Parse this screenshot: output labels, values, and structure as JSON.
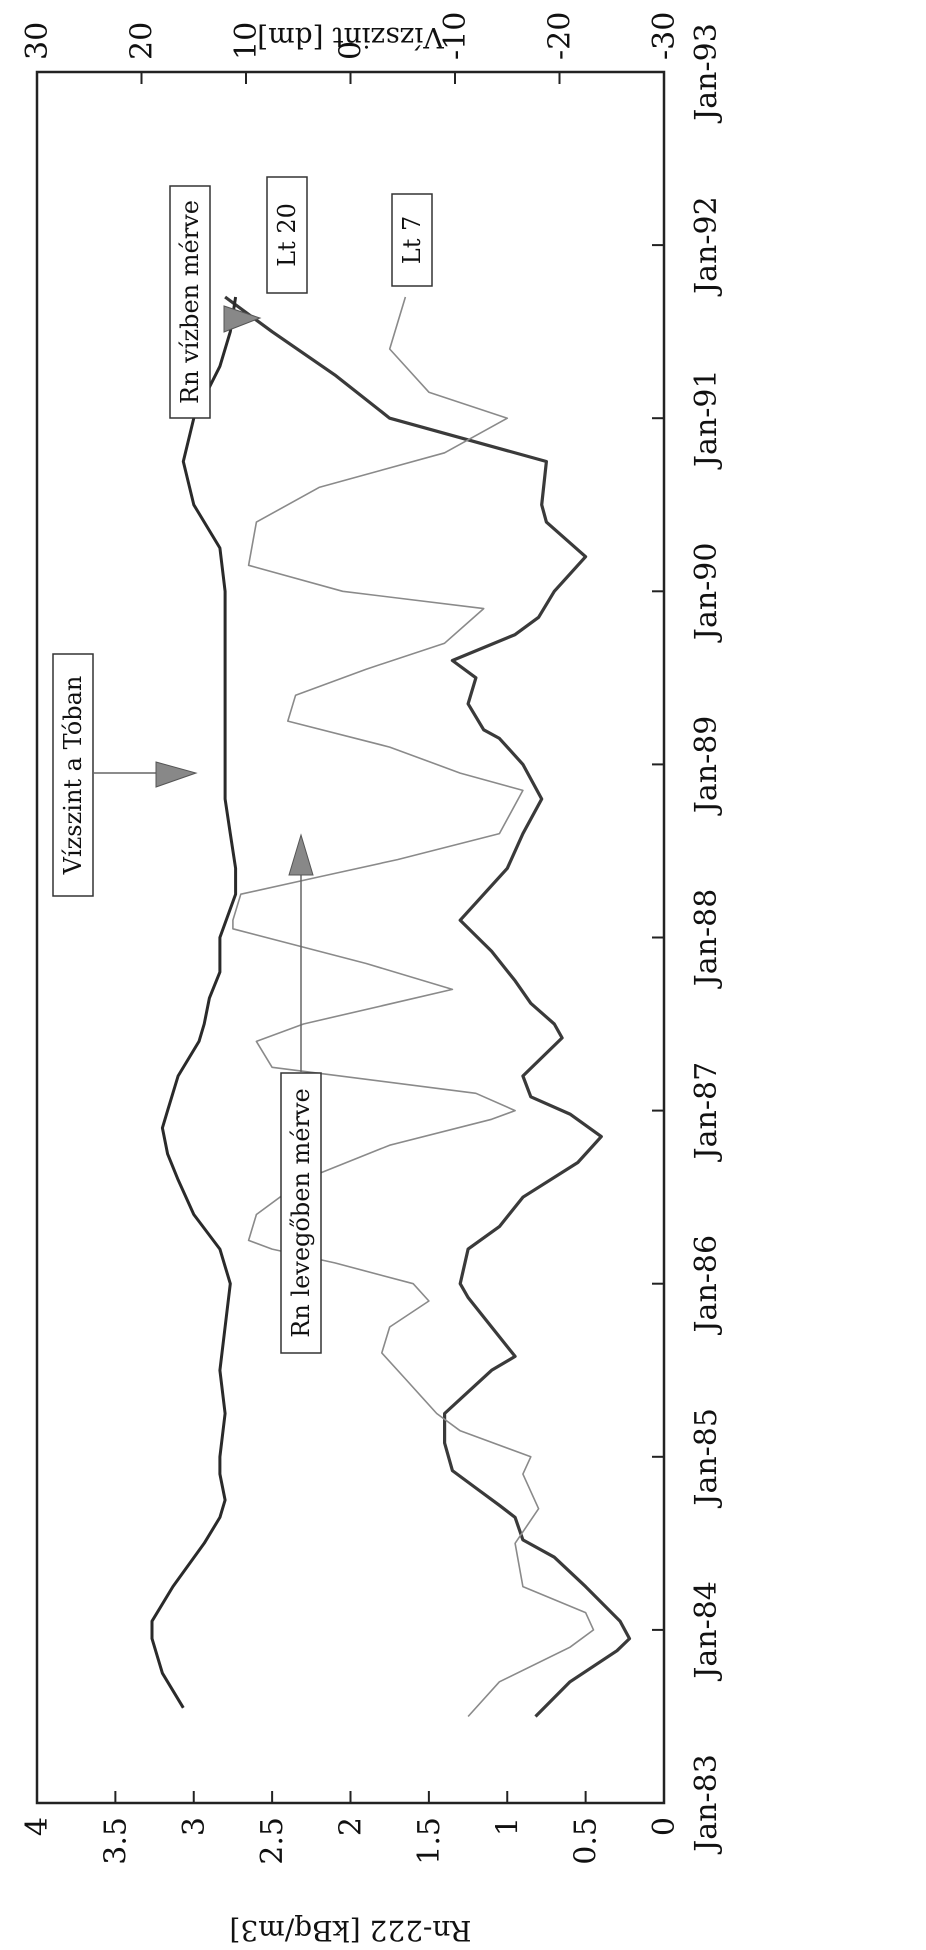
{
  "chart_data": {
    "type": "line",
    "xlabel": "",
    "ylabel": "Rn-222 [kBq/m3]",
    "y2label": "Vízszint [dm]",
    "xlim": [
      "Jan-83",
      "Jan-93"
    ],
    "ylim": [
      0,
      4
    ],
    "y2lim": [
      -30,
      30
    ],
    "x_tick_labels": [
      "Jan-83",
      "Jan-84",
      "Jan-85",
      "Jan-86",
      "Jan-87",
      "Jan-88",
      "Jan-89",
      "Jan-90",
      "Jan-91",
      "Jan-92",
      "Jan-93"
    ],
    "y_tick_labels": [
      "0",
      "0.5",
      "1",
      "1.5",
      "2",
      "2.5",
      "3",
      "3.5",
      "4"
    ],
    "y2_tick_labels": [
      "-30",
      "-20",
      "-10",
      "0",
      "10",
      "20",
      "30"
    ],
    "grid": false,
    "series": [
      {
        "name": "Lt 20",
        "axis": "left",
        "color": "#3a3a3a",
        "x": [
          1983.5,
          1983.7,
          1983.88,
          1983.95,
          1984.05,
          1984.25,
          1984.42,
          1984.52,
          1984.65,
          1984.72,
          1984.82,
          1984.92,
          1985.08,
          1985.25,
          1985.5,
          1985.58,
          1985.75,
          1985.92,
          1986.0,
          1986.2,
          1986.33,
          1986.5,
          1986.7,
          1986.85,
          1986.98,
          1987.08,
          1987.2,
          1987.42,
          1987.5,
          1987.62,
          1987.75,
          1987.92,
          1988.1,
          1988.2,
          1988.4,
          1988.6,
          1988.8,
          1989.0,
          1989.15,
          1989.2,
          1989.35,
          1989.5,
          1989.6,
          1989.75,
          1989.85,
          1990.0,
          1990.2,
          1990.4,
          1990.5,
          1990.75,
          1991.0,
          1991.25,
          1991.5,
          1991.7
        ],
        "values": [
          0.82,
          0.6,
          0.3,
          0.22,
          0.28,
          0.5,
          0.7,
          0.9,
          0.95,
          1.05,
          1.2,
          1.35,
          1.4,
          1.4,
          1.1,
          0.95,
          1.1,
          1.25,
          1.3,
          1.25,
          1.05,
          0.9,
          0.55,
          0.4,
          0.6,
          0.85,
          0.9,
          0.65,
          0.7,
          0.85,
          0.95,
          1.1,
          1.3,
          1.2,
          1.0,
          0.9,
          0.78,
          0.9,
          1.05,
          1.15,
          1.25,
          1.2,
          1.35,
          0.95,
          0.8,
          0.7,
          0.5,
          0.75,
          0.78,
          0.75,
          1.75,
          2.1,
          2.5,
          2.8
        ]
      },
      {
        "name": "Lt 7",
        "axis": "left",
        "color": "#8a8a8a",
        "x": [
          1983.5,
          1983.7,
          1983.9,
          1984.0,
          1984.1,
          1984.25,
          1984.5,
          1984.7,
          1984.9,
          1985.0,
          1985.15,
          1985.25,
          1985.45,
          1985.6,
          1985.75,
          1985.9,
          1986.0,
          1986.12,
          1986.2,
          1986.25,
          1986.4,
          1986.6,
          1986.8,
          1986.95,
          1987.0,
          1987.1,
          1987.25,
          1987.4,
          1987.5,
          1987.7,
          1987.85,
          1988.05,
          1988.1,
          1988.25,
          1988.35,
          1988.45,
          1988.6,
          1988.85,
          1988.95,
          1989.1,
          1989.25,
          1989.4,
          1989.55,
          1989.7,
          1989.9,
          1990.0,
          1990.15,
          1990.4,
          1990.6,
          1990.8,
          1991.0,
          1991.15,
          1991.4,
          1991.7
        ],
        "values": [
          1.25,
          1.05,
          0.6,
          0.45,
          0.5,
          0.9,
          0.95,
          0.8,
          0.9,
          0.85,
          1.3,
          1.45,
          1.65,
          1.8,
          1.75,
          1.5,
          1.6,
          2.1,
          2.5,
          2.65,
          2.6,
          2.3,
          1.75,
          1.1,
          0.95,
          1.2,
          2.5,
          2.6,
          2.3,
          1.35,
          1.9,
          2.75,
          2.75,
          2.7,
          2.2,
          1.7,
          1.05,
          0.9,
          1.3,
          1.75,
          2.4,
          2.35,
          1.9,
          1.4,
          1.15,
          2.05,
          2.65,
          2.6,
          2.2,
          1.4,
          1.0,
          1.5,
          1.75,
          1.65
        ]
      },
      {
        "name": "Vízszint a Tóban",
        "axis": "right",
        "color": "#2a2a2a",
        "x": [
          1983.55,
          1983.75,
          1983.95,
          1984.05,
          1984.25,
          1984.5,
          1984.65,
          1984.75,
          1984.9,
          1985.0,
          1985.25,
          1985.5,
          1985.75,
          1986.0,
          1986.1,
          1986.2,
          1986.4,
          1986.6,
          1986.75,
          1986.9,
          1987.0,
          1987.2,
          1987.4,
          1987.5,
          1987.65,
          1987.8,
          1987.9,
          1988.0,
          1988.25,
          1988.4,
          1988.6,
          1988.8,
          1989.0,
          1989.5,
          1990.0,
          1990.25,
          1990.5,
          1990.75,
          1991.0,
          1991.3,
          1991.5,
          1991.7
        ],
        "values": [
          16,
          18,
          19,
          19,
          17,
          14,
          12.5,
          12,
          12.5,
          12.5,
          12,
          12.5,
          12,
          11.5,
          12,
          12.5,
          15,
          16.5,
          17.5,
          18,
          17.5,
          16.5,
          14.5,
          14,
          13.5,
          12.5,
          12.5,
          12.5,
          11,
          11,
          11.5,
          12,
          12,
          12,
          12,
          12.5,
          15,
          16,
          15,
          12.5,
          11.5,
          11
        ]
      }
    ],
    "annotations": [
      {
        "text": "Rn vízben mérve"
      },
      {
        "text": "Lt 20"
      },
      {
        "text": "Lt 7"
      },
      {
        "text": "Vízszint a Tóban"
      },
      {
        "text": "Rn levegőben mérve"
      }
    ]
  }
}
